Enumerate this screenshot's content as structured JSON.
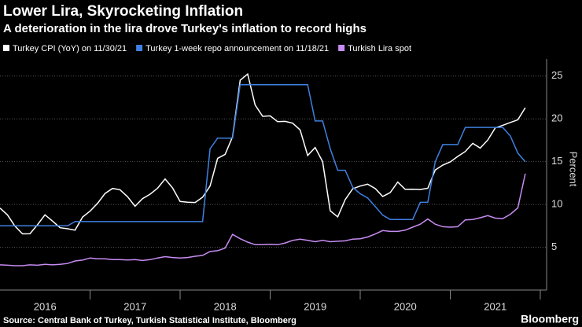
{
  "chart_data": {
    "type": "line",
    "title": "Lower Lira, Skyrocketing Inflation",
    "subtitle": "A deterioration in the lira drove Turkey's inflation to record highs",
    "y_label": "Percent",
    "source": "Source: Central Bank of Turkey, Turkish Statistical Institute, Bloomberg",
    "brand": "Bloomberg",
    "legend": "top-left",
    "grid": true,
    "xlim": [
      2016,
      2022.07
    ],
    "xticks": [
      {
        "value": 2016.5,
        "label": "2016"
      },
      {
        "value": 2017.5,
        "label": "2017"
      },
      {
        "value": 2018.5,
        "label": "2018"
      },
      {
        "value": 2019.5,
        "label": "2019"
      },
      {
        "value": 2020.5,
        "label": "2020"
      },
      {
        "value": 2021.5,
        "label": "2021"
      }
    ],
    "ylim": [
      0,
      27
    ],
    "yticks": [
      5,
      10,
      15,
      20,
      25
    ],
    "x": [
      2016,
      2016.083,
      2016.167,
      2016.25,
      2016.333,
      2016.417,
      2016.5,
      2016.583,
      2016.667,
      2016.75,
      2016.833,
      2016.917,
      2017,
      2017.083,
      2017.167,
      2017.25,
      2017.333,
      2017.417,
      2017.5,
      2017.583,
      2017.667,
      2017.75,
      2017.833,
      2017.917,
      2018,
      2018.083,
      2018.167,
      2018.25,
      2018.333,
      2018.417,
      2018.5,
      2018.583,
      2018.667,
      2018.75,
      2018.833,
      2018.917,
      2019,
      2019.083,
      2019.167,
      2019.25,
      2019.333,
      2019.417,
      2019.5,
      2019.583,
      2019.667,
      2019.75,
      2019.833,
      2019.917,
      2020,
      2020.083,
      2020.167,
      2020.25,
      2020.333,
      2020.417,
      2020.5,
      2020.583,
      2020.667,
      2020.75,
      2020.833,
      2020.917,
      2021,
      2021.083,
      2021.167,
      2021.25,
      2021.333,
      2021.417,
      2021.5,
      2021.583,
      2021.667,
      2021.75,
      2021.833
    ],
    "series": [
      {
        "name": "Turkey CPI (YoY) on 11/30/21",
        "color": "#ffffff",
        "values": [
          9.58,
          8.78,
          7.46,
          6.57,
          6.58,
          7.64,
          8.79,
          8.05,
          7.28,
          7.16,
          7.0,
          8.53,
          9.22,
          10.13,
          11.29,
          11.87,
          11.72,
          10.9,
          9.79,
          10.68,
          11.2,
          11.9,
          12.98,
          11.92,
          10.35,
          10.26,
          10.23,
          10.85,
          12.15,
          15.39,
          15.85,
          17.9,
          24.52,
          25.24,
          21.62,
          20.3,
          20.35,
          19.67,
          19.71,
          19.5,
          18.71,
          15.72,
          16.65,
          15.01,
          9.26,
          8.55,
          10.56,
          11.84,
          12.15,
          12.37,
          11.86,
          10.94,
          11.39,
          12.62,
          11.76,
          11.77,
          11.75,
          11.89,
          14.03,
          14.6,
          14.97,
          15.61,
          16.19,
          17.14,
          16.59,
          17.53,
          18.95,
          19.25,
          19.58,
          19.89,
          21.31
        ]
      },
      {
        "name": "Turkey 1-week repo announcement  on 11/18/21",
        "color": "#3f80e0",
        "values": [
          7.5,
          7.5,
          7.5,
          7.5,
          7.5,
          7.5,
          7.5,
          7.5,
          7.5,
          7.5,
          8,
          8,
          8,
          8,
          8,
          8,
          8,
          8,
          8,
          8,
          8,
          8,
          8,
          8,
          8,
          8,
          8,
          8,
          16.5,
          17.75,
          17.75,
          17.75,
          24,
          24,
          24,
          24,
          24,
          24,
          24,
          24,
          24,
          24,
          19.75,
          19.75,
          16.5,
          14,
          14,
          12,
          11.25,
          10.75,
          9.75,
          8.75,
          8.25,
          8.25,
          8.25,
          8.25,
          10.25,
          10.25,
          15,
          17,
          17,
          17,
          19,
          19,
          19,
          19,
          19,
          19,
          18,
          16,
          15
        ]
      },
      {
        "name": "Turkish Lira spot",
        "color": "#c78cf2",
        "values": [
          2.95,
          2.9,
          2.85,
          2.85,
          2.95,
          2.9,
          3.0,
          2.95,
          3.0,
          3.1,
          3.4,
          3.5,
          3.75,
          3.65,
          3.65,
          3.55,
          3.55,
          3.52,
          3.55,
          3.45,
          3.55,
          3.75,
          3.9,
          3.8,
          3.75,
          3.8,
          3.95,
          4.05,
          4.5,
          4.6,
          4.9,
          6.5,
          6.0,
          5.6,
          5.3,
          5.3,
          5.35,
          5.3,
          5.5,
          5.8,
          5.95,
          5.8,
          5.65,
          5.8,
          5.65,
          5.7,
          5.75,
          5.95,
          6.0,
          6.2,
          6.55,
          6.95,
          6.85,
          6.85,
          7.0,
          7.35,
          7.7,
          8.3,
          7.7,
          7.4,
          7.35,
          7.4,
          8.2,
          8.25,
          8.45,
          8.7,
          8.4,
          8.35,
          8.85,
          9.6,
          13.6
        ]
      }
    ]
  }
}
